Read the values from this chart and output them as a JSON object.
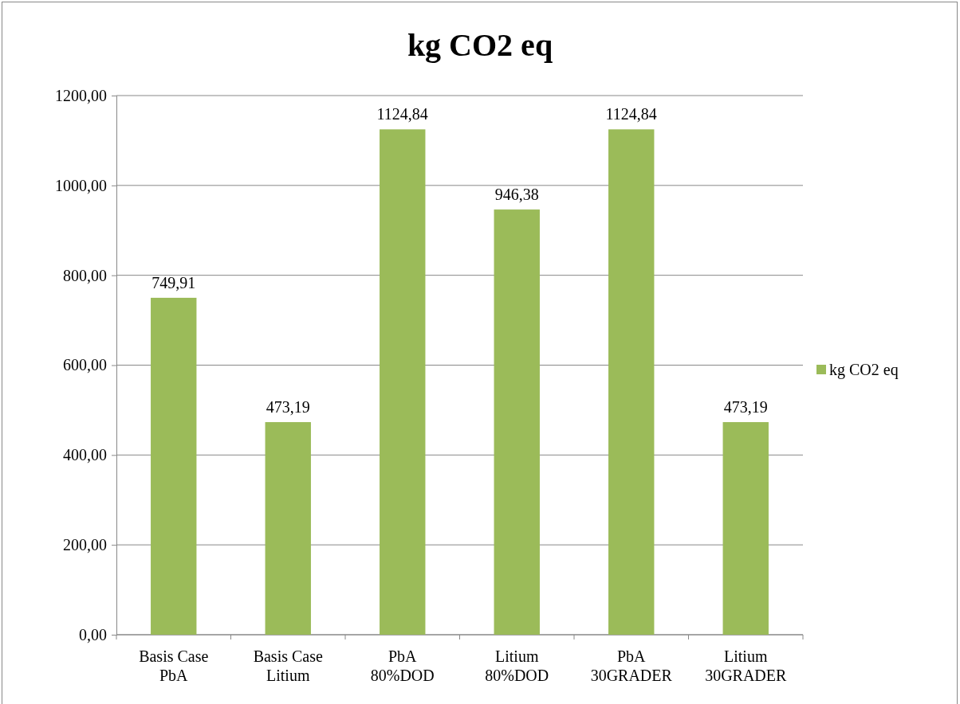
{
  "chart_data": {
    "type": "bar",
    "title": "kg CO2 eq",
    "categories": [
      "Basis Case\nPbA",
      "Basis Case\nLitium",
      "PbA\n80%DOD",
      "Litium\n80%DOD",
      "PbA\n30GRADER",
      "Litium\n30GRADER"
    ],
    "series": [
      {
        "name": "kg CO2 eq",
        "color": "#9bbb59",
        "values": [
          749.91,
          473.19,
          1124.84,
          946.38,
          1124.84,
          473.19
        ],
        "value_labels": [
          "749,91",
          "473,19",
          "1124,84",
          "946,38",
          "1124,84",
          "473,19"
        ]
      }
    ],
    "ylim": [
      0,
      1200
    ],
    "yticks": [
      {
        "value": 0,
        "label": "0,00"
      },
      {
        "value": 200,
        "label": "200,00"
      },
      {
        "value": 400,
        "label": "400,00"
      },
      {
        "value": 600,
        "label": "600,00"
      },
      {
        "value": 800,
        "label": "800,00"
      },
      {
        "value": 1000,
        "label": "1000,00"
      },
      {
        "value": 1200,
        "label": "1200,00"
      }
    ],
    "grid": "y",
    "legend": "right"
  }
}
